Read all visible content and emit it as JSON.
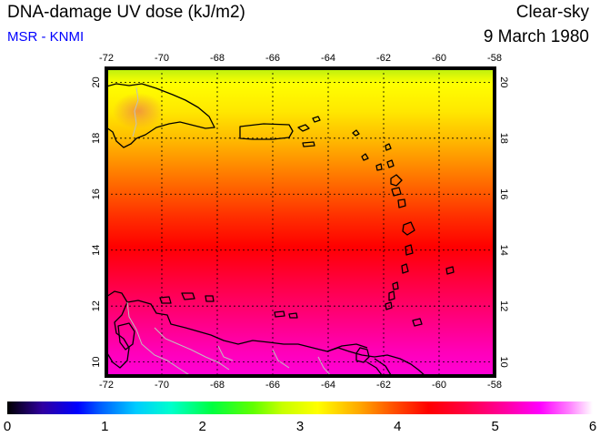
{
  "header": {
    "title": "DNA-damage UV dose (kJ/m2)",
    "subtitle": "MSR - KNMI",
    "sky_condition": "Clear-sky",
    "date": "9 March 1980"
  },
  "map": {
    "lon_min": -72,
    "lon_max": -58,
    "lat_min": 9.5,
    "lat_max": 20.5,
    "lon_ticks": [
      "-72",
      "-70",
      "-68",
      "-66",
      "-64",
      "-62",
      "-60",
      "-58"
    ],
    "lat_ticks": [
      "10",
      "12",
      "14",
      "16",
      "18",
      "20"
    ]
  },
  "colorbar": {
    "labels": [
      "0",
      "1",
      "2",
      "3",
      "4",
      "5",
      "6"
    ],
    "min": 0,
    "max": 6
  },
  "colors": {
    "title": "#000000",
    "subtitle": "#0000ff"
  }
}
